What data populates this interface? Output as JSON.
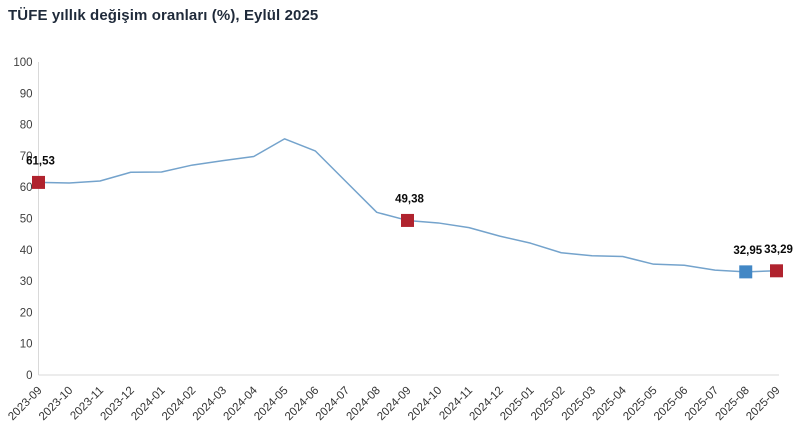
{
  "title": "TÜFE yıllık değişim oranları (%), Eylül 2025",
  "chart_data": {
    "type": "line",
    "title": "TÜFE yıllık değişim oranları (%), Eylül 2025",
    "xlabel": "",
    "ylabel": "",
    "ylim": [
      0,
      100
    ],
    "yticks": [
      0,
      10,
      20,
      30,
      40,
      50,
      60,
      70,
      80,
      90,
      100
    ],
    "grid": false,
    "legend": "none",
    "line_color": "#74a3cc",
    "x": [
      "2023-09",
      "2023-10",
      "2023-11",
      "2023-12",
      "2024-01",
      "2024-02",
      "2024-03",
      "2024-04",
      "2024-05",
      "2024-06",
      "2024-07",
      "2024-08",
      "2024-09",
      "2024-10",
      "2024-11",
      "2024-12",
      "2025-01",
      "2025-02",
      "2025-03",
      "2025-04",
      "2025-05",
      "2025-06",
      "2025-07",
      "2025-08",
      "2025-09"
    ],
    "series": [
      {
        "name": "TÜFE yıllık değişim oranı (%)",
        "values": [
          61.53,
          61.36,
          61.98,
          64.77,
          64.86,
          67.07,
          68.5,
          69.8,
          75.45,
          71.6,
          61.78,
          51.97,
          49.38,
          48.58,
          47.09,
          44.38,
          42.12,
          39.05,
          38.1,
          37.86,
          35.41,
          35.05,
          33.52,
          32.95,
          33.29
        ]
      }
    ],
    "annotated_points": [
      {
        "x": "2023-09",
        "value": 61.53,
        "label": "61,53",
        "marker_color": "#b0232e"
      },
      {
        "x": "2024-09",
        "value": 49.38,
        "label": "49,38",
        "marker_color": "#b0232e"
      },
      {
        "x": "2025-08",
        "value": 32.95,
        "label": "32,95",
        "marker_color": "#4287c5"
      },
      {
        "x": "2025-09",
        "value": 33.29,
        "label": "33,29",
        "marker_color": "#b0232e"
      }
    ],
    "colors": {
      "axis_line": "#d9d9d9",
      "title_text": "#1f2a3a",
      "tick_text": "#3f3f3f",
      "data_label_text": "#0a0a0a"
    }
  }
}
